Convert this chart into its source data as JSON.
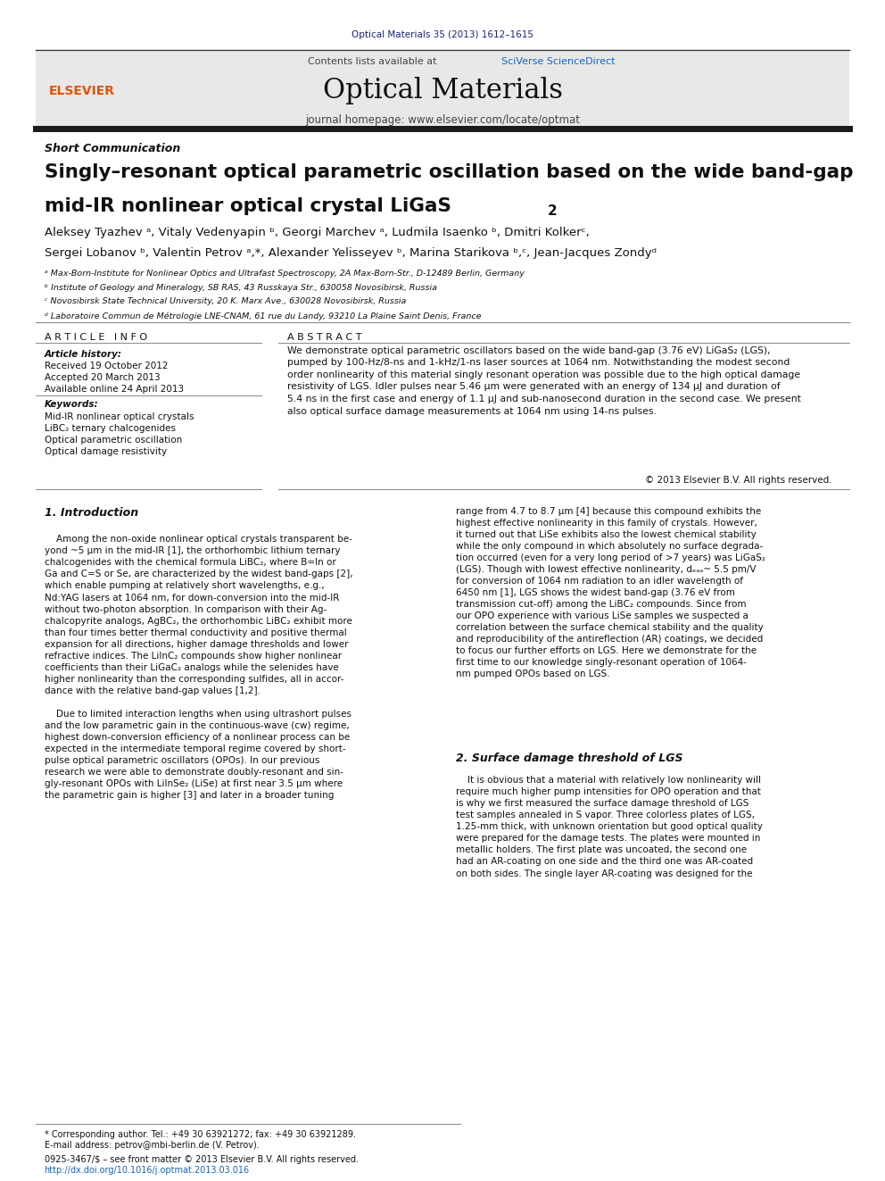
{
  "bg_color": "#ffffff",
  "journal_ref_text": "Optical Materials 35 (2013) 1612–1615",
  "journal_ref_color": "#1a237e",
  "contents_text": "Contents lists available at ",
  "sciverse_text": "SciVerse ScienceDirect",
  "sciverse_color": "#1565c0",
  "journal_name": "Optical Materials",
  "journal_homepage": "journal homepage: www.elsevier.com/locate/optmat",
  "elsevier_color": "#e65100",
  "header_bg": "#e8e8e8",
  "thick_bar_color": "#1a1a1a",
  "article_type": "Short Communication",
  "title_line1": "Singly–resonant optical parametric oscillation based on the wide band-gap",
  "title_line2": "mid-IR nonlinear optical crystal LiGaS",
  "title_subscript": "2",
  "authors_line1": "Aleksey Tyazhev ᵃ, Vitaly Vedenyapin ᵇ, Georgi Marchev ᵃ, Ludmila Isaenko ᵇ, Dmitri Kolkerᶜ,",
  "authors_line2": "Sergei Lobanov ᵇ, Valentin Petrov ᵃ,*, Alexander Yelisseyev ᵇ, Marina Starikova ᵇ,ᶜ, Jean-Jacques Zondyᵈ",
  "affil_a": "ᵃ Max-Born-Institute for Nonlinear Optics and Ultrafast Spectroscopy, 2A Max-Born-Str., D-12489 Berlin, Germany",
  "affil_b": "ᵇ Institute of Geology and Mineralogy, SB RAS, 43 Russkaya Str., 630058 Novosibirsk, Russia",
  "affil_c": "ᶜ Novosibirsk State Technical University, 20 K. Marx Ave., 630028 Novosibirsk, Russia",
  "affil_d": "ᵈ Laboratoire Commun de Métrologie LNE-CNAM, 61 rue du Landy, 93210 La Plaine Saint Denis, France",
  "article_info_header": "A R T I C L E   I N F O",
  "abstract_header": "A B S T R A C T",
  "history_label": "Article history:",
  "received": "Received 19 October 2012",
  "accepted": "Accepted 20 March 2013",
  "available": "Available online 24 April 2013",
  "keywords_label": "Keywords:",
  "kw1": "Mid-IR nonlinear optical crystals",
  "kw2": "LiBC₂ ternary chalcogenides",
  "kw3": "Optical parametric oscillation",
  "kw4": "Optical damage resistivity",
  "abstract_text": "We demonstrate optical parametric oscillators based on the wide band-gap (3.76 eV) LiGaS₂ (LGS),\npumped by 100-Hz/8-ns and 1-kHz/1-ns laser sources at 1064 nm. Notwithstanding the modest second\norder nonlinearity of this material singly resonant operation was possible due to the high optical damage\nresistivity of LGS. Idler pulses near 5.46 μm were generated with an energy of 134 μJ and duration of\n5.4 ns in the first case and energy of 1.1 μJ and sub-nanosecond duration in the second case. We present\nalso optical surface damage measurements at 1064 nm using 14-ns pulses.",
  "copyright": "© 2013 Elsevier B.V. All rights reserved.",
  "intro_header": "1. Introduction",
  "intro_col1_p1": "    Among the non-oxide nonlinear optical crystals transparent be-\nyond ~5 μm in the mid-IR [1], the orthorhombic lithium ternary\nchalcogenides with the chemical formula LiBC₂, where B=In or\nGa and C=S or Se, are characterized by the widest band-gaps [2],\nwhich enable pumping at relatively short wavelengths, e.g.,\nNd:YAG lasers at 1064 nm, for down-conversion into the mid-IR\nwithout two-photon absorption. In comparison with their Ag-\nchalcopyrite analogs, AgBC₂, the orthorhombic LiBC₂ exhibit more\nthan four times better thermal conductivity and positive thermal\nexpansion for all directions, higher damage thresholds and lower\nrefractive indices. The LiInC₂ compounds show higher nonlinear\ncoefficients than their LiGaC₂ analogs while the selenides have\nhigher nonlinearity than the corresponding sulfides, all in accor-\ndance with the relative band-gap values [1,2].",
  "intro_col1_p2": "    Due to limited interaction lengths when using ultrashort pulses\nand the low parametric gain in the continuous-wave (cw) regime,\nhighest down-conversion efficiency of a nonlinear process can be\nexpected in the intermediate temporal regime covered by short-\npulse optical parametric oscillators (OPOs). In our previous\nresearch we were able to demonstrate doubly-resonant and sin-\ngly-resonant OPOs with LiInSe₂ (LiSe) at first near 3.5 μm where\nthe parametric gain is higher [3] and later in a broader tuning",
  "intro_col2_p1": "range from 4.7 to 8.7 μm [4] because this compound exhibits the\nhighest effective nonlinearity in this family of crystals. However,\nit turned out that LiSe exhibits also the lowest chemical stability\nwhile the only compound in which absolutely no surface degrada-\ntion occurred (even for a very long period of >7 years) was LiGaS₂\n(LGS). Though with lowest effective nonlinearity, dₑₐₐ~ 5.5 pm/V\nfor conversion of 1064 nm radiation to an idler wavelength of\n6450 nm [1], LGS shows the widest band-gap (3.76 eV from\ntransmission cut-off) among the LiBC₂ compounds. Since from\nour OPO experience with various LiSe samples we suspected a\ncorrelation between the surface chemical stability and the quality\nand reproducibility of the antireflection (AR) coatings, we decided\nto focus our further efforts on LGS. Here we demonstrate for the\nfirst time to our knowledge singly-resonant operation of 1064-\nnm pumped OPOs based on LGS.",
  "section2_header": "2. Surface damage threshold of LGS",
  "section2_col2_p1": "    It is obvious that a material with relatively low nonlinearity will\nrequire much higher pump intensities for OPO operation and that\nis why we first measured the surface damage threshold of LGS\ntest samples annealed in S vapor. Three colorless plates of LGS,\n1.25-mm thick, with unknown orientation but good optical quality\nwere prepared for the damage tests. The plates were mounted in\nmetallic holders. The first plate was uncoated, the second one\nhad an AR-coating on one side and the third one was AR-coated\non both sides. The single layer AR-coating was designed for the",
  "footnote_star": "* Corresponding author. Tel.: +49 30 63921272; fax: +49 30 63921289.",
  "footnote_email": "E-mail address: petrov@mbi-berlin.de (V. Petrov).",
  "footnote_issn": "0925-3467/$ – see front matter © 2013 Elsevier B.V. All rights reserved.",
  "footnote_doi": "http://dx.doi.org/10.1016/j.optmat.2013.03.016"
}
